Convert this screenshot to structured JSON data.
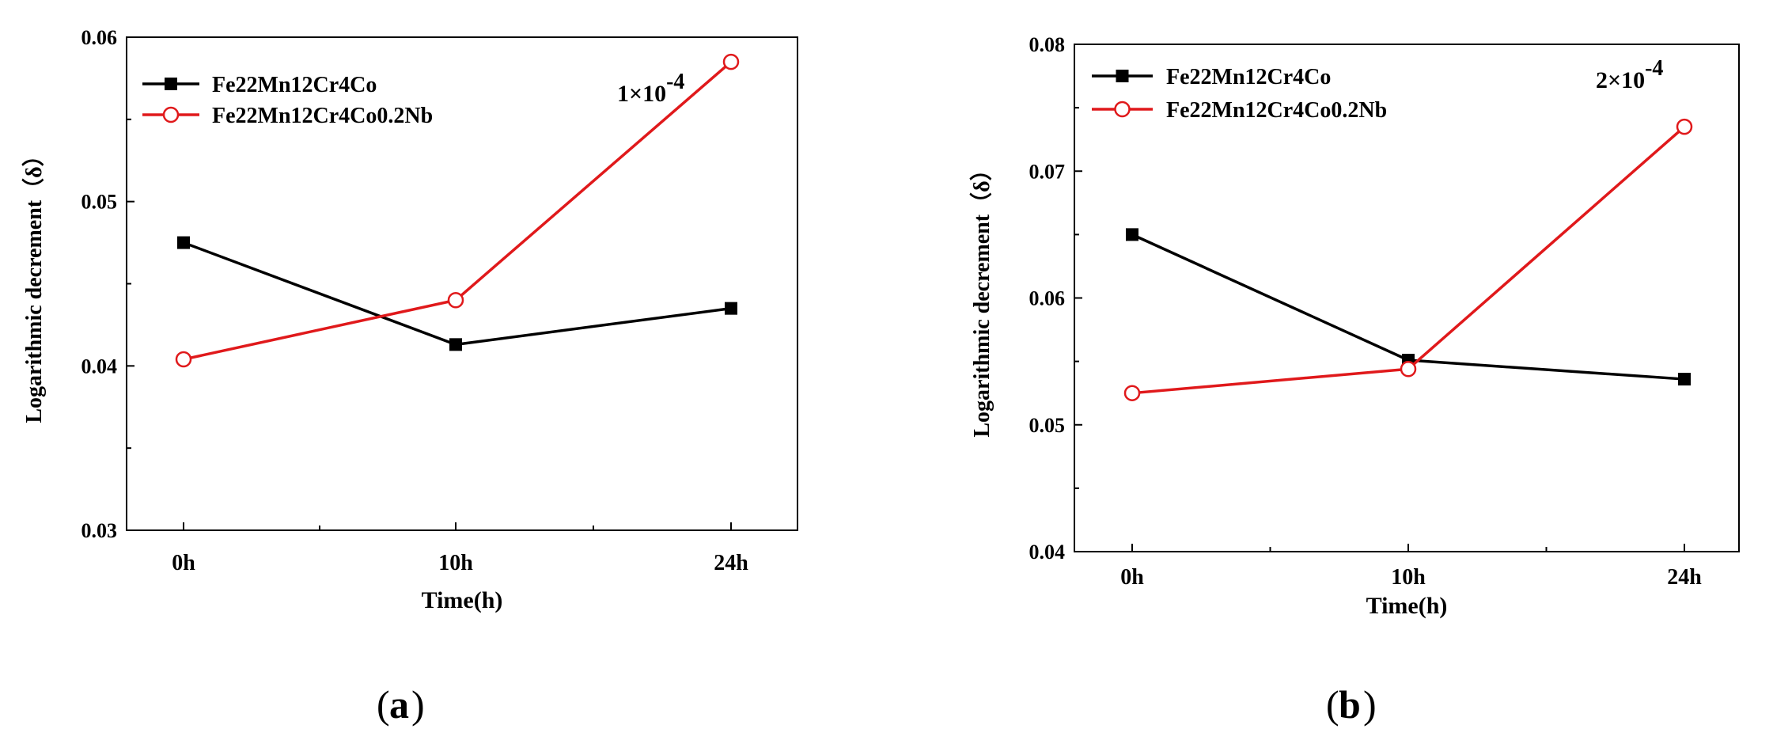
{
  "chart_data": [
    {
      "type": "line",
      "panel_label": "a",
      "xlabel": "Time(h)",
      "ylabel": "Logarithmic decrement（δ）",
      "categories": [
        "0h",
        "10h",
        "24h"
      ],
      "ylim": [
        0.03,
        0.06
      ],
      "yticks": [
        "0.03",
        "0.04",
        "0.05",
        "0.06"
      ],
      "annotation": {
        "mantissa": "1×10",
        "exponent": "-4"
      },
      "legend_position": "top-left",
      "series": [
        {
          "name": "Fe22Mn12Cr4Co",
          "color": "#000000",
          "marker": "square-filled",
          "values": [
            0.0475,
            0.0413,
            0.0435
          ]
        },
        {
          "name": "Fe22Mn12Cr4Co0.2Nb",
          "color": "#e0191b",
          "marker": "circle-open",
          "values": [
            0.0404,
            0.044,
            0.0585
          ]
        }
      ]
    },
    {
      "type": "line",
      "panel_label": "b",
      "xlabel": "Time(h)",
      "ylabel": "Logarithmic decrement（δ）",
      "categories": [
        "0h",
        "10h",
        "24h"
      ],
      "ylim": [
        0.04,
        0.08
      ],
      "yticks": [
        "0.04",
        "0.05",
        "0.06",
        "0.07",
        "0.08"
      ],
      "annotation": {
        "mantissa": "2×10",
        "exponent": "-4"
      },
      "legend_position": "top-left",
      "series": [
        {
          "name": "Fe22Mn12Cr4Co",
          "color": "#000000",
          "marker": "square-filled",
          "values": [
            0.065,
            0.0551,
            0.0536
          ]
        },
        {
          "name": "Fe22Mn12Cr4Co0.2Nb",
          "color": "#e0191b",
          "marker": "circle-open",
          "values": [
            0.0525,
            0.0544,
            0.0735
          ]
        }
      ]
    }
  ]
}
